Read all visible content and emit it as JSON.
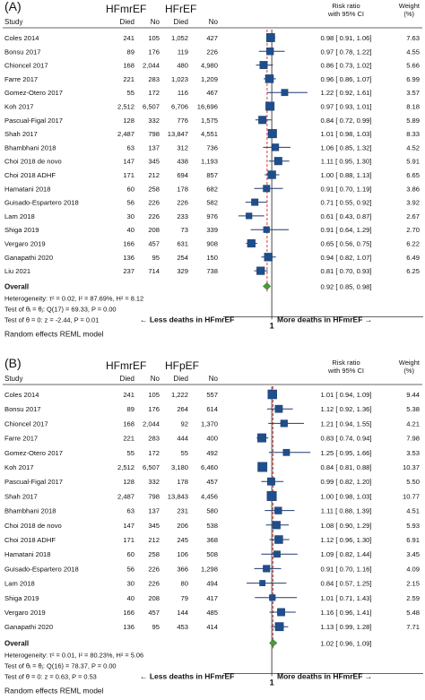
{
  "chart_data": [
    {
      "type": "forest",
      "panel_label": "(A)",
      "group1": "HFmrEF",
      "group2": "HFrEF",
      "col_study": "Study",
      "col_died1": "Died",
      "col_no1": "No",
      "col_died2": "Died",
      "col_no2": "No",
      "col_rr_line1": "Risk ratio",
      "col_rr_line2": "with 95% CI",
      "col_w_line1": "Weight",
      "col_w_line2": "(%)",
      "studies": [
        {
          "name": "Coles 2014",
          "d1": "241",
          "n1": "105",
          "d2": "1,052",
          "n2": "427",
          "rr": 0.98,
          "lo": 0.91,
          "hi": 1.06,
          "ci": "0.98 [ 0.91,  1.06]",
          "w": "7.63",
          "wv": 7.63
        },
        {
          "name": "Bonsu 2017",
          "d1": "89",
          "n1": "176",
          "d2": "119",
          "n2": "226",
          "rr": 0.97,
          "lo": 0.78,
          "hi": 1.22,
          "ci": "0.97 [ 0.78,  1.22]",
          "w": "4.55",
          "wv": 4.55
        },
        {
          "name": "Chioncel 2017",
          "d1": "168",
          "n1": "2,044",
          "d2": "480",
          "n2": "4,980",
          "rr": 0.86,
          "lo": 0.73,
          "hi": 1.02,
          "ci": "0.86 [ 0.73,  1.02]",
          "w": "5.66",
          "wv": 5.66
        },
        {
          "name": "Farre 2017",
          "d1": "221",
          "n1": "283",
          "d2": "1,023",
          "n2": "1,209",
          "rr": 0.96,
          "lo": 0.86,
          "hi": 1.07,
          "ci": "0.96 [ 0.86,  1.07]",
          "w": "6.99",
          "wv": 6.99
        },
        {
          "name": "Gomez-Otero 2017",
          "d1": "55",
          "n1": "172",
          "d2": "116",
          "n2": "467",
          "rr": 1.22,
          "lo": 0.92,
          "hi": 1.61,
          "ci": "1.22 [ 0.92,  1.61]",
          "w": "3.57",
          "wv": 3.57
        },
        {
          "name": "Koh 2017",
          "d1": "2,512",
          "n1": "6,507",
          "d2": "6,706",
          "n2": "16,696",
          "rr": 0.97,
          "lo": 0.93,
          "hi": 1.01,
          "ci": "0.97 [ 0.93,  1.01]",
          "w": "8.18",
          "wv": 8.18
        },
        {
          "name": "Pascual-Figal 2017",
          "d1": "128",
          "n1": "332",
          "d2": "776",
          "n2": "1,575",
          "rr": 0.84,
          "lo": 0.72,
          "hi": 0.99,
          "ci": "0.84 [ 0.72,  0.99]",
          "w": "5.89",
          "wv": 5.89
        },
        {
          "name": "Shah 2017",
          "d1": "2,487",
          "n1": "798",
          "d2": "13,847",
          "n2": "4,551",
          "rr": 1.01,
          "lo": 0.98,
          "hi": 1.03,
          "ci": "1.01 [ 0.98,  1.03]",
          "w": "8.33",
          "wv": 8.33
        },
        {
          "name": "Bhambhani 2018",
          "d1": "63",
          "n1": "137",
          "d2": "312",
          "n2": "736",
          "rr": 1.06,
          "lo": 0.85,
          "hi": 1.32,
          "ci": "1.06 [ 0.85,  1.32]",
          "w": "4.52",
          "wv": 4.52
        },
        {
          "name": "Choi 2018 de novo",
          "d1": "147",
          "n1": "345",
          "d2": "438",
          "n2": "1,193",
          "rr": 1.11,
          "lo": 0.95,
          "hi": 1.3,
          "ci": "1.11 [ 0.95,  1.30]",
          "w": "5.91",
          "wv": 5.91
        },
        {
          "name": "Choi 2018 ADHF",
          "d1": "171",
          "n1": "212",
          "d2": "694",
          "n2": "857",
          "rr": 1.0,
          "lo": 0.88,
          "hi": 1.13,
          "ci": "1.00 [ 0.88,  1.13]",
          "w": "6.65",
          "wv": 6.65
        },
        {
          "name": "Hamatani 2018",
          "d1": "60",
          "n1": "258",
          "d2": "178",
          "n2": "682",
          "rr": 0.91,
          "lo": 0.7,
          "hi": 1.19,
          "ci": "0.91 [ 0.70,  1.19]",
          "w": "3.86",
          "wv": 3.86
        },
        {
          "name": "Guisado-Espartero 2018",
          "d1": "56",
          "n1": "226",
          "d2": "226",
          "n2": "582",
          "rr": 0.71,
          "lo": 0.55,
          "hi": 0.92,
          "ci": "0.71 [ 0.55,  0.92]",
          "w": "3.92",
          "wv": 3.92
        },
        {
          "name": "Lam 2018",
          "d1": "30",
          "n1": "226",
          "d2": "233",
          "n2": "976",
          "rr": 0.61,
          "lo": 0.43,
          "hi": 0.87,
          "ci": "0.61 [ 0.43,  0.87]",
          "w": "2.67",
          "wv": 2.67
        },
        {
          "name": "Shiga 2019",
          "d1": "40",
          "n1": "208",
          "d2": "73",
          "n2": "339",
          "rr": 0.91,
          "lo": 0.64,
          "hi": 1.29,
          "ci": "0.91 [ 0.64,  1.29]",
          "w": "2.70",
          "wv": 2.7
        },
        {
          "name": "Vergaro 2019",
          "d1": "166",
          "n1": "457",
          "d2": "631",
          "n2": "908",
          "rr": 0.65,
          "lo": 0.56,
          "hi": 0.75,
          "ci": "0.65 [ 0.56,  0.75]",
          "w": "6.22",
          "wv": 6.22
        },
        {
          "name": "Ganapathi 2020",
          "d1": "136",
          "n1": "95",
          "d2": "254",
          "n2": "150",
          "rr": 0.94,
          "lo": 0.82,
          "hi": 1.07,
          "ci": "0.94 [ 0.82,  1.07]",
          "w": "6.49",
          "wv": 6.49
        },
        {
          "name": "Liu 2021",
          "d1": "237",
          "n1": "714",
          "d2": "329",
          "n2": "738",
          "rr": 0.81,
          "lo": 0.7,
          "hi": 0.93,
          "ci": "0.81 [ 0.70,  0.93]",
          "w": "6.25",
          "wv": 6.25
        }
      ],
      "overall": {
        "label": "Overall",
        "rr": 0.92,
        "lo": 0.85,
        "hi": 0.98,
        "ci": "0.92 [ 0.85,  0.98]"
      },
      "heterogeneity": "Heterogeneity: τ² = 0.02, I² = 87.69%, H² = 8.12",
      "test_q": "Test of θᵢ = θⱼ: Q(17) = 69.33, P = 0.00",
      "test_z": "Test of θ = 0: z = -2.44, P = 0.01",
      "axis_ticks": [
        1
      ],
      "xlim": [
        0.4,
        1.75
      ],
      "ref_value": 1,
      "left_note": "← Less deaths in HFmrEF",
      "right_note": "More deaths in HFmrEF →",
      "footer": "Random effects REML model"
    },
    {
      "type": "forest",
      "panel_label": "(B)",
      "group1": "HFmrEF",
      "group2": "HFpEF",
      "col_study": "Study",
      "col_died1": "Died",
      "col_no1": "No",
      "col_died2": "Died",
      "col_no2": "No",
      "col_rr_line1": "Risk ratio",
      "col_rr_line2": "with 95% CI",
      "col_w_line1": "Weight",
      "col_w_line2": "(%)",
      "studies": [
        {
          "name": "Coles 2014",
          "d1": "241",
          "n1": "105",
          "d2": "1,222",
          "n2": "557",
          "rr": 1.01,
          "lo": 0.94,
          "hi": 1.09,
          "ci": "1.01 [ 0.94,  1.09]",
          "w": "9.44",
          "wv": 9.44
        },
        {
          "name": "Bonsu 2017",
          "d1": "89",
          "n1": "176",
          "d2": "264",
          "n2": "614",
          "rr": 1.12,
          "lo": 0.92,
          "hi": 1.36,
          "ci": "1.12 [ 0.92,  1.36]",
          "w": "5.38",
          "wv": 5.38
        },
        {
          "name": "Chioncel 2017",
          "d1": "168",
          "n1": "2,044",
          "d2": "92",
          "n2": "1,370",
          "rr": 1.21,
          "lo": 0.94,
          "hi": 1.55,
          "ci": "1.21 [ 0.94,  1.55]",
          "w": "4.21",
          "wv": 4.21
        },
        {
          "name": "Farre 2017",
          "d1": "221",
          "n1": "283",
          "d2": "444",
          "n2": "400",
          "rr": 0.83,
          "lo": 0.74,
          "hi": 0.94,
          "ci": "0.83 [ 0.74,  0.94]",
          "w": "7.98",
          "wv": 7.98
        },
        {
          "name": "Gomez-Otero 2017",
          "d1": "55",
          "n1": "172",
          "d2": "55",
          "n2": "492",
          "rr": 1.25,
          "lo": 0.95,
          "hi": 1.66,
          "ci": "1.25 [ 0.95,  1.66]",
          "w": "3.53",
          "wv": 3.53
        },
        {
          "name": "Koh 2017",
          "d1": "2,512",
          "n1": "6,507",
          "d2": "3,180",
          "n2": "6,460",
          "rr": 0.84,
          "lo": 0.81,
          "hi": 0.88,
          "ci": "0.84 [ 0.81,  0.88]",
          "w": "10.37",
          "wv": 10.37
        },
        {
          "name": "Pascual-Figal 2017",
          "d1": "128",
          "n1": "332",
          "d2": "178",
          "n2": "457",
          "rr": 0.99,
          "lo": 0.82,
          "hi": 1.2,
          "ci": "0.99 [ 0.82,  1.20]",
          "w": "5.50",
          "wv": 5.5
        },
        {
          "name": "Shah 2017",
          "d1": "2,487",
          "n1": "798",
          "d2": "13,843",
          "n2": "4,456",
          "rr": 1.0,
          "lo": 0.98,
          "hi": 1.03,
          "ci": "1.00 [ 0.98,  1.03]",
          "w": "10.77",
          "wv": 10.77
        },
        {
          "name": "Bhambhani 2018",
          "d1": "63",
          "n1": "137",
          "d2": "231",
          "n2": "580",
          "rr": 1.11,
          "lo": 0.88,
          "hi": 1.39,
          "ci": "1.11 [ 0.88,  1.39]",
          "w": "4.51",
          "wv": 4.51
        },
        {
          "name": "Choi 2018 de novo",
          "d1": "147",
          "n1": "345",
          "d2": "206",
          "n2": "538",
          "rr": 1.08,
          "lo": 0.9,
          "hi": 1.29,
          "ci": "1.08 [ 0.90,  1.29]",
          "w": "5.93",
          "wv": 5.93
        },
        {
          "name": "Choi 2018 ADHF",
          "d1": "171",
          "n1": "212",
          "d2": "245",
          "n2": "368",
          "rr": 1.12,
          "lo": 0.96,
          "hi": 1.3,
          "ci": "1.12 [ 0.96,  1.30]",
          "w": "6.91",
          "wv": 6.91
        },
        {
          "name": "Hamatani 2018",
          "d1": "60",
          "n1": "258",
          "d2": "106",
          "n2": "508",
          "rr": 1.09,
          "lo": 0.82,
          "hi": 1.44,
          "ci": "1.09 [ 0.82,  1.44]",
          "w": "3.45",
          "wv": 3.45
        },
        {
          "name": "Guisado-Espartero 2018",
          "d1": "56",
          "n1": "226",
          "d2": "366",
          "n2": "1,298",
          "rr": 0.91,
          "lo": 0.7,
          "hi": 1.16,
          "ci": "0.91 [ 0.70,  1.16]",
          "w": "4.09",
          "wv": 4.09
        },
        {
          "name": "Lam 2018",
          "d1": "30",
          "n1": "226",
          "d2": "80",
          "n2": "494",
          "rr": 0.84,
          "lo": 0.57,
          "hi": 1.25,
          "ci": "0.84 [ 0.57,  1.25]",
          "w": "2.15",
          "wv": 2.15
        },
        {
          "name": "Shiga 2019",
          "d1": "40",
          "n1": "208",
          "d2": "79",
          "n2": "417",
          "rr": 1.01,
          "lo": 0.71,
          "hi": 1.43,
          "ci": "1.01 [ 0.71,  1.43]",
          "w": "2.59",
          "wv": 2.59
        },
        {
          "name": "Vergaro 2019",
          "d1": "166",
          "n1": "457",
          "d2": "144",
          "n2": "485",
          "rr": 1.16,
          "lo": 0.96,
          "hi": 1.41,
          "ci": "1.16 [ 0.96,  1.41]",
          "w": "5.48",
          "wv": 5.48
        },
        {
          "name": "Ganapathi 2020",
          "d1": "136",
          "n1": "95",
          "d2": "453",
          "n2": "414",
          "rr": 1.13,
          "lo": 0.99,
          "hi": 1.28,
          "ci": "1.13 [ 0.99,  1.28]",
          "w": "7.71",
          "wv": 7.71
        }
      ],
      "overall": {
        "label": "Overall",
        "rr": 1.02,
        "lo": 0.96,
        "hi": 1.09,
        "ci": "1.02 [ 0.96,  1.09]"
      },
      "heterogeneity": "Heterogeneity: τ² = 0.01, I² = 80.23%, H² = 5.06",
      "test_q": "Test of θᵢ = θⱼ: Q(16) = 78.37, P = 0.00",
      "test_z": "Test of θ = 0: z = 0.63, P = 0.53",
      "axis_ticks": [
        1
      ],
      "xlim": [
        0.4,
        1.75
      ],
      "ref_value": 1,
      "left_note": "← Less deaths in HFmrEF",
      "right_note": "More deaths in HFmrEF →",
      "footer": "Random effects REML model"
    }
  ]
}
